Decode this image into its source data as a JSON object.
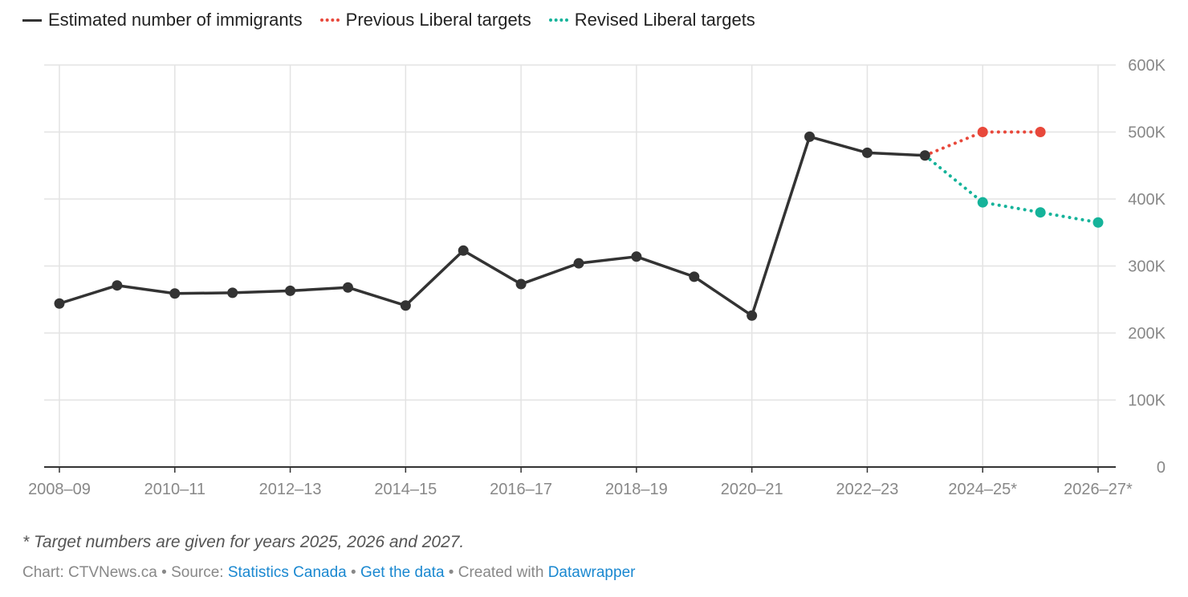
{
  "chart_data": {
    "type": "line",
    "title": "",
    "xlabel": "",
    "ylabel": "",
    "categories": [
      "2008–09",
      "2009–10",
      "2010–11",
      "2011–12",
      "2012–13",
      "2013–14",
      "2014–15",
      "2015–16",
      "2016–17",
      "2017–18",
      "2018–19",
      "2019–20",
      "2020–21",
      "2021–22",
      "2022–23",
      "2023–24",
      "2024–25*",
      "2025–26*",
      "2026–27*"
    ],
    "tick_labels": [
      "2008–09",
      "2010–11",
      "2012–13",
      "2014–15",
      "2016–17",
      "2018–19",
      "2020–21",
      "2022–23",
      "2024–25*",
      "2026–27*"
    ],
    "ylim": [
      0,
      600000
    ],
    "y_ticks": [
      0,
      100000,
      200000,
      300000,
      400000,
      500000,
      600000
    ],
    "y_tick_labels": [
      "0",
      "100K",
      "200K",
      "300K",
      "400K",
      "500K",
      "600K"
    ],
    "grid": true,
    "legend_position": "top-left",
    "series": [
      {
        "name": "Estimated number of immigrants",
        "color": "#333333",
        "style": "solid",
        "values": [
          244000,
          271000,
          259000,
          260000,
          263000,
          268000,
          241000,
          323000,
          273000,
          304000,
          314000,
          284000,
          226000,
          493000,
          469000,
          465000,
          null,
          null,
          null
        ]
      },
      {
        "name": "Previous Liberal targets",
        "color": "#e8483b",
        "style": "dotted",
        "values": [
          null,
          null,
          null,
          null,
          null,
          null,
          null,
          null,
          null,
          null,
          null,
          null,
          null,
          null,
          null,
          465000,
          500000,
          500000,
          null
        ]
      },
      {
        "name": "Revised Liberal targets",
        "color": "#15b39a",
        "style": "dotted",
        "values": [
          null,
          null,
          null,
          null,
          null,
          null,
          null,
          null,
          null,
          null,
          null,
          null,
          null,
          null,
          null,
          465000,
          395000,
          380000,
          365000
        ]
      }
    ]
  },
  "note": "* Target numbers are given for years 2025, 2026 and 2027.",
  "footer": {
    "chart": "Chart: CTVNews.ca",
    "sep": " • ",
    "source_label": "Source: ",
    "source_link": "Statistics Canada",
    "get_data": "Get the data",
    "created": "Created with ",
    "datawrapper": "Datawrapper"
  }
}
